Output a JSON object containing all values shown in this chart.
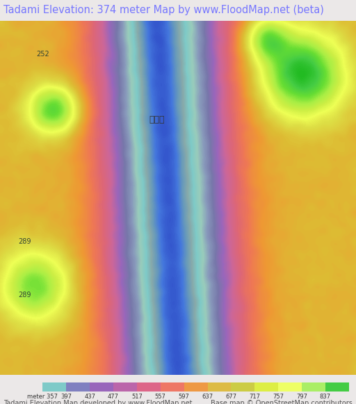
{
  "title": "Tadami Elevation: 374 meter Map by www.FloodMap.net (beta)",
  "title_color": "#7777ff",
  "title_bg": "#ebe8e8",
  "title_fontsize": 10.5,
  "colorbar_labels": [
    "meter 357",
    "397",
    "437",
    "477",
    "517",
    "557",
    "597",
    "637",
    "677",
    "717",
    "757",
    "797",
    "837"
  ],
  "colorbar_values": [
    357,
    397,
    437,
    477,
    517,
    557,
    597,
    637,
    677,
    717,
    757,
    797,
    837
  ],
  "colorbar_colors": [
    "#7ecac8",
    "#8080c0",
    "#9966bb",
    "#bb66aa",
    "#dd6688",
    "#ee7766",
    "#ee9944",
    "#ddbb44",
    "#cccc44",
    "#ddee44",
    "#eeff66",
    "#aaee66",
    "#44cc44"
  ],
  "footer_left": "Tadami Elevation Map developed by www.FloodMap.net",
  "footer_right": "Base map © OpenStreetMap contributors",
  "footer_color": "#555555",
  "footer_fontsize": 7,
  "map_bg": "#e8d8c8",
  "fig_width": 5.12,
  "fig_height": 5.82
}
